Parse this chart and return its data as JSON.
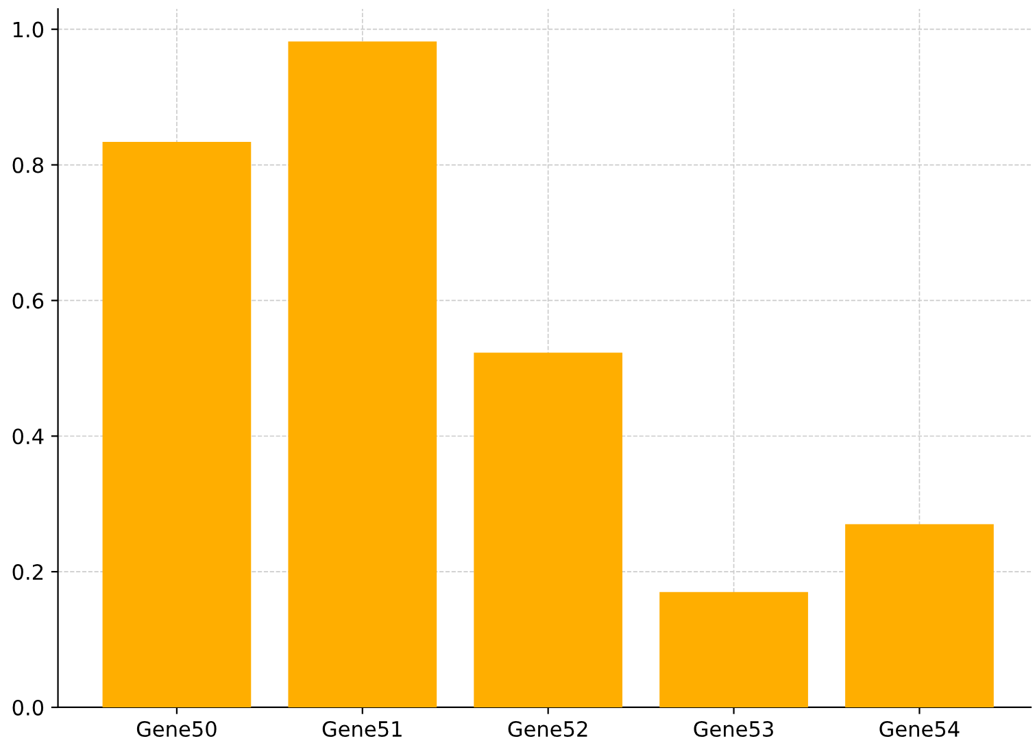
{
  "chart_data": {
    "type": "bar",
    "categories": [
      "Gene50",
      "Gene51",
      "Gene52",
      "Gene53",
      "Gene54"
    ],
    "values": [
      0.834,
      0.982,
      0.523,
      0.17,
      0.27
    ],
    "color": "#ffae00",
    "ylim": [
      0,
      1.03
    ],
    "yticks": [
      {
        "value": 0,
        "label": "0.0"
      },
      {
        "value": 0.2,
        "label": "0.2"
      },
      {
        "value": 0.4,
        "label": "0.4"
      },
      {
        "value": 0.6,
        "label": "0.6"
      },
      {
        "value": 0.8,
        "label": "0.8"
      },
      {
        "value": 1.0,
        "label": "1.0"
      }
    ],
    "grid": true
  }
}
